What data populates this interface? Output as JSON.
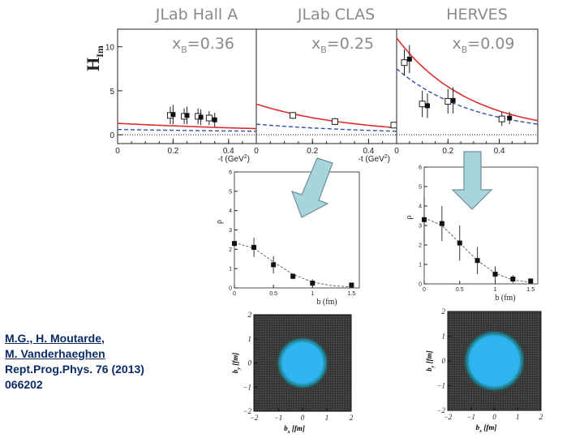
{
  "chart_data": [
    {
      "type": "scatter",
      "panel": "top",
      "ylabel_main": "H",
      "ylabel_sub": "Im",
      "xlabel": "-t (GeV",
      "xlabel_exp": "2",
      "xlabel_close": ")",
      "y_ticks": [
        "10",
        "5",
        "0"
      ],
      "ylim": [
        -1,
        12
      ],
      "subplots": [
        {
          "title": "JLab Hall A",
          "xb_label": "x",
          "xb_sub": "B",
          "xb_value": "=0.36",
          "xlim": [
            0,
            0.5
          ],
          "x_ticks": [
            "0",
            "0.2",
            "0.4"
          ],
          "curve_model": {
            "y0": 1.3,
            "y1": 0.7
          },
          "curve_fit": {
            "y0": 0.6,
            "y1": 0.4
          },
          "open_points": [
            {
              "x": 0.19,
              "y": 2.2,
              "err": 1.0
            },
            {
              "x": 0.24,
              "y": 2.1,
              "err": 0.9
            },
            {
              "x": 0.29,
              "y": 2.1,
              "err": 0.9
            },
            {
              "x": 0.33,
              "y": 1.9,
              "err": 0.8
            }
          ],
          "filled_points": [
            {
              "x": 0.2,
              "y": 2.3,
              "err": 1.1
            },
            {
              "x": 0.25,
              "y": 2.2,
              "err": 1.0
            },
            {
              "x": 0.3,
              "y": 2.0,
              "err": 0.9
            },
            {
              "x": 0.35,
              "y": 1.7,
              "err": 0.8
            }
          ]
        },
        {
          "title": "JLab CLAS",
          "xb_label": "x",
          "xb_sub": "B",
          "xb_value": "=0.25",
          "xlim": [
            0,
            0.5
          ],
          "x_ticks": [
            "0",
            "0.2",
            "0.4"
          ],
          "curve_model": {
            "y0": 3.5,
            "y1": 0.8
          },
          "curve_fit": {
            "y0": 1.2,
            "y1": 0.4
          },
          "open_points": [
            {
              "x": 0.13,
              "y": 2.2,
              "err": 0.4
            },
            {
              "x": 0.28,
              "y": 1.5,
              "err": 0.4
            },
            {
              "x": 0.49,
              "y": 1.1,
              "err": 0.3
            }
          ],
          "filled_points": []
        },
        {
          "title": "HERVES",
          "xb_label": "x",
          "xb_sub": "B",
          "xb_value": "=0.09",
          "xlim": [
            0,
            0.55
          ],
          "x_ticks": [
            "0",
            "0.2",
            "0.4"
          ],
          "curve_model": {
            "y0": 11.0,
            "y1": 1.6
          },
          "curve_fit": {
            "y0": 7.5,
            "y1": 1.2
          },
          "open_points": [
            {
              "x": 0.03,
              "y": 8.2,
              "err": 1.5
            },
            {
              "x": 0.1,
              "y": 3.5,
              "err": 1.5
            },
            {
              "x": 0.2,
              "y": 3.8,
              "err": 1.4
            },
            {
              "x": 0.41,
              "y": 1.8,
              "err": 0.8
            }
          ],
          "filled_points": [
            {
              "x": 0.05,
              "y": 8.6,
              "err": 1.6
            },
            {
              "x": 0.12,
              "y": 3.3,
              "err": 1.4
            },
            {
              "x": 0.22,
              "y": 3.9,
              "err": 1.5
            },
            {
              "x": 0.44,
              "y": 1.9,
              "err": 0.7
            }
          ]
        }
      ]
    },
    {
      "type": "scatter",
      "panel": "middle-left",
      "xlabel": "b (fm)",
      "ylabel": "ρ",
      "xlim": [
        0,
        1.6
      ],
      "ylim": [
        0,
        6
      ],
      "x_ticks": [
        "0",
        "0.5",
        "1",
        "1.5"
      ],
      "y_ticks": [
        "0",
        "1",
        "2",
        "3",
        "4",
        "5",
        "6"
      ],
      "points": [
        {
          "x": 0.0,
          "y": 2.3,
          "err": 0.0
        },
        {
          "x": 0.25,
          "y": 2.1,
          "err": 0.5
        },
        {
          "x": 0.5,
          "y": 1.2,
          "err": 0.45
        },
        {
          "x": 0.75,
          "y": 0.6,
          "err": 0.15
        },
        {
          "x": 1.0,
          "y": 0.25,
          "err": 0.2
        },
        {
          "x": 1.5,
          "y": 0.15,
          "err": 0.1
        }
      ],
      "fit": [
        {
          "x": 0.0,
          "y": 2.35
        },
        {
          "x": 0.25,
          "y": 2.05
        },
        {
          "x": 0.5,
          "y": 1.35
        },
        {
          "x": 0.75,
          "y": 0.7
        },
        {
          "x": 1.0,
          "y": 0.3
        },
        {
          "x": 1.25,
          "y": 0.12
        },
        {
          "x": 1.5,
          "y": 0.05
        }
      ]
    },
    {
      "type": "scatter",
      "panel": "middle-right",
      "xlabel": "b (fm)",
      "ylabel": "ρ",
      "xlim": [
        0,
        1.6
      ],
      "ylim": [
        0,
        6
      ],
      "x_ticks": [
        "0",
        "0.5",
        "1",
        "1.5"
      ],
      "y_ticks": [
        "0",
        "1",
        "2",
        "3",
        "4",
        "5",
        "6"
      ],
      "points": [
        {
          "x": 0.0,
          "y": 3.3,
          "err": 1.2
        },
        {
          "x": 0.25,
          "y": 3.1,
          "err": 0.9
        },
        {
          "x": 0.5,
          "y": 2.1,
          "err": 0.9
        },
        {
          "x": 0.75,
          "y": 1.2,
          "err": 0.7
        },
        {
          "x": 1.0,
          "y": 0.5,
          "err": 0.4
        },
        {
          "x": 1.25,
          "y": 0.25,
          "err": 0.2
        },
        {
          "x": 1.5,
          "y": 0.15,
          "err": 0.1
        }
      ],
      "fit": [
        {
          "x": 0.0,
          "y": 3.4
        },
        {
          "x": 0.25,
          "y": 3.0
        },
        {
          "x": 0.5,
          "y": 2.1
        },
        {
          "x": 0.75,
          "y": 1.2
        },
        {
          "x": 1.0,
          "y": 0.55
        },
        {
          "x": 1.25,
          "y": 0.2
        },
        {
          "x": 1.5,
          "y": 0.08
        }
      ]
    },
    {
      "type": "heatmap",
      "panel": "bottom-left",
      "xlabel_main": "b",
      "xlabel_sub": "x",
      "xlabel_unit": "[fm]",
      "ylabel_main": "b",
      "ylabel_sub": "y",
      "ylabel_unit": "[fm]",
      "xlim": [
        -2,
        2
      ],
      "ylim": [
        -2,
        2
      ],
      "x_ticks": [
        "−2",
        "−1",
        "0",
        "1",
        "2"
      ],
      "y_ticks": [
        "−2",
        "−1",
        "0",
        "1",
        "2"
      ],
      "core_radius_fm": 0.85,
      "halo_radius_fm": 1.05,
      "colors": {
        "core": "#2fb5ee",
        "halo": "#1f7f8c",
        "background": "#333333"
      }
    },
    {
      "type": "heatmap",
      "panel": "bottom-right",
      "xlabel_main": "b",
      "xlabel_sub": "x",
      "xlabel_unit": "[fm]",
      "ylabel_main": "b",
      "ylabel_sub": "y",
      "ylabel_unit": "[fm]",
      "xlim": [
        -2,
        2
      ],
      "ylim": [
        -2,
        2
      ],
      "x_ticks": [
        "−2",
        "−1",
        "0",
        "1",
        "2"
      ],
      "y_ticks": [
        "−2",
        "−1",
        "0",
        "1",
        "2"
      ],
      "core_radius_fm": 1.1,
      "halo_radius_fm": 1.3,
      "colors": {
        "core": "#2fb5ee",
        "halo": "#1f7f8c",
        "background": "#333333"
      }
    }
  ],
  "colors": {
    "model_curve": "#d9302c",
    "fit_curve": "#3a4ea0",
    "arrow_fill": "#a8d4dc",
    "arrow_stroke": "#6e8f9a",
    "citation_text": "#0b2b66"
  },
  "citation": {
    "line1": "M.G., H. Moutarde,",
    "line2": "M. Vanderhaeghen",
    "line3": "Rept.Prog.Phys. 76 (2013)",
    "line4": "066202"
  }
}
